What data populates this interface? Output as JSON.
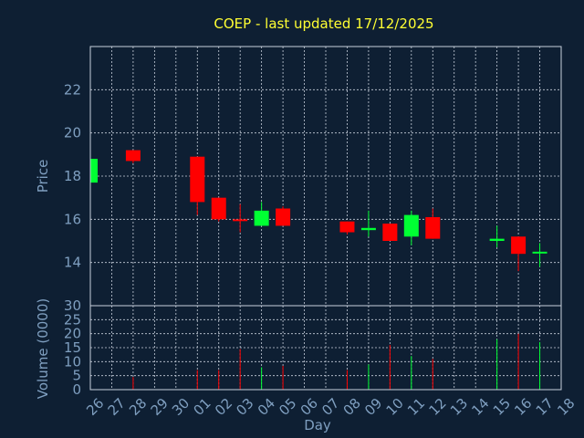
{
  "chart_data": {
    "type": "candlestick",
    "title": "COEP - last updated 17/12/2025",
    "xlabel": "Day",
    "ylabel": "Price",
    "volume_label": "Volume (0000)",
    "x_ticks": [
      "26",
      "27",
      "28",
      "29",
      "30",
      "01",
      "02",
      "03",
      "04",
      "05",
      "06",
      "07",
      "08",
      "09",
      "10",
      "11",
      "12",
      "13",
      "14",
      "15",
      "16",
      "17",
      "18"
    ],
    "price_ylim": [
      12,
      24
    ],
    "price_ticks": [
      14,
      16,
      18,
      20,
      22
    ],
    "volume_ylim": [
      0,
      30
    ],
    "volume_ticks": [
      0,
      5,
      10,
      15,
      20,
      25,
      30
    ],
    "grid": true,
    "up_color": "#00ff33",
    "down_color": "#ff0000",
    "candles": [
      {
        "day": "26",
        "open": 17.7,
        "high": 18.8,
        "low": 17.7,
        "close": 18.8,
        "volume": 0
      },
      {
        "day": "28",
        "open": 19.2,
        "high": 19.2,
        "low": 18.6,
        "close": 18.7,
        "volume": 4.5
      },
      {
        "day": "01",
        "open": 18.9,
        "high": 18.9,
        "low": 16.2,
        "close": 16.8,
        "volume": 7
      },
      {
        "day": "02",
        "open": 17.0,
        "high": 17.0,
        "low": 15.9,
        "close": 16.0,
        "volume": 7
      },
      {
        "day": "03",
        "open": 16.0,
        "high": 16.7,
        "low": 15.4,
        "close": 15.95,
        "volume": 14.5
      },
      {
        "day": "04",
        "open": 15.7,
        "high": 16.8,
        "low": 15.7,
        "close": 16.4,
        "volume": 8
      },
      {
        "day": "05",
        "open": 16.5,
        "high": 16.6,
        "low": 15.7,
        "close": 15.7,
        "volume": 8.5
      },
      {
        "day": "08",
        "open": 15.9,
        "high": 15.9,
        "low": 15.3,
        "close": 15.4,
        "volume": 7
      },
      {
        "day": "09",
        "open": 15.5,
        "high": 16.4,
        "low": 15.2,
        "close": 15.6,
        "volume": 9
      },
      {
        "day": "10",
        "open": 15.8,
        "high": 15.8,
        "low": 15.0,
        "close": 15.0,
        "volume": 16
      },
      {
        "day": "11",
        "open": 15.2,
        "high": 16.4,
        "low": 14.8,
        "close": 16.2,
        "volume": 12
      },
      {
        "day": "12",
        "open": 16.1,
        "high": 16.5,
        "low": 15.1,
        "close": 15.1,
        "volume": 11
      },
      {
        "day": "15",
        "open": 15.0,
        "high": 15.7,
        "low": 14.7,
        "close": 15.1,
        "volume": 18
      },
      {
        "day": "16",
        "open": 15.2,
        "high": 15.2,
        "low": 13.6,
        "close": 14.4,
        "volume": 20
      },
      {
        "day": "17",
        "open": 14.45,
        "high": 14.9,
        "low": 13.8,
        "close": 14.5,
        "volume": 17
      }
    ]
  }
}
